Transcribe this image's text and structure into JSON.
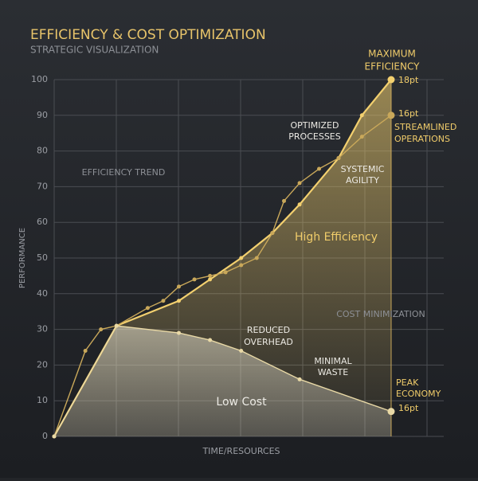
{
  "chart_data": {
    "type": "line",
    "title": "EFFICIENCY & COST OPTIMIZATION",
    "subtitle": "STRATEGIC VISUALIZATION",
    "xlabel": "TIME/RESOURCES",
    "ylabel": "PERFORMANCE",
    "xlim": [
      0,
      100
    ],
    "ylim": [
      0,
      100
    ],
    "yticks": [
      0,
      10,
      20,
      30,
      40,
      50,
      60,
      70,
      80,
      90,
      100
    ],
    "grid": true,
    "series": [
      {
        "color": "#f3d06f",
        "area": true,
        "x": [
          0,
          16,
          32,
          40,
          48,
          56,
          63,
          73,
          79,
          86.5
        ],
        "values": [
          0,
          31,
          38,
          44,
          50,
          57,
          65,
          78,
          90,
          100
        ]
      },
      {
        "color": "#c9a85a",
        "area": false,
        "x": [
          0,
          8,
          12,
          16,
          24,
          28,
          32,
          36,
          40,
          44,
          48,
          52,
          56,
          59,
          63,
          68,
          73,
          79,
          86.5
        ],
        "values": [
          0,
          24,
          30,
          31,
          36,
          38,
          42,
          44,
          45,
          46,
          48,
          50,
          57,
          66,
          71,
          75,
          78,
          84,
          90
        ]
      },
      {
        "color": "#e9d9a6",
        "area": true,
        "x": [
          0,
          16,
          32,
          40,
          48,
          63,
          86.5
        ],
        "values": [
          0,
          31,
          29,
          27,
          24,
          16,
          7
        ]
      }
    ],
    "annotations": [
      "MAXIMUM",
      "EFFICIENCY",
      "18pt",
      "16pt",
      "STREAMLINED",
      "OPERATIONS",
      "OPTIMIZED",
      "PROCESSES",
      "SYSTEMIC",
      "AGILITY",
      "EFFICIENCY TREND",
      "High Efficiency",
      "COST MINIMIZATION",
      "REDUCED",
      "OVERHEAD",
      "MINIMAL",
      "WASTE",
      "PEAK",
      "ECONOMY",
      "16pt",
      "Low Cost"
    ]
  }
}
